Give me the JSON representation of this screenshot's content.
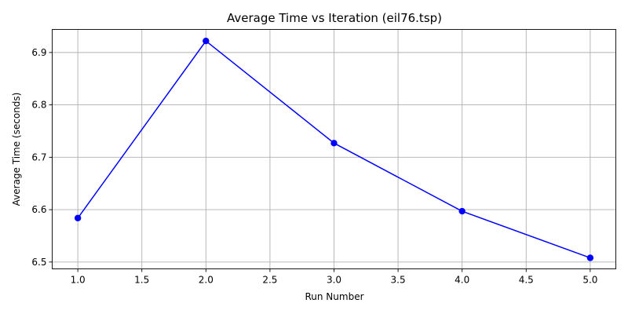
{
  "chart_data": {
    "type": "line",
    "title": "Average Time vs Iteration (eil76.tsp)",
    "xlabel": "Run Number",
    "ylabel": "Average Time (seconds)",
    "xlim": [
      0.8,
      5.2
    ],
    "ylim": [
      6.487,
      6.944
    ],
    "x_ticks": [
      1.0,
      1.5,
      2.0,
      2.5,
      3.0,
      3.5,
      4.0,
      4.5,
      5.0
    ],
    "x_tick_labels": [
      "1.0",
      "1.5",
      "2.0",
      "2.5",
      "3.0",
      "3.5",
      "4.0",
      "4.5",
      "5.0"
    ],
    "y_ticks": [
      6.5,
      6.6,
      6.7,
      6.8,
      6.9
    ],
    "y_tick_labels": [
      "6.5",
      "6.6",
      "6.7",
      "6.8",
      "6.9"
    ],
    "grid": true,
    "series": [
      {
        "x": [
          1,
          2,
          3,
          4,
          5
        ],
        "values": [
          6.584,
          6.922,
          6.727,
          6.597,
          6.508
        ],
        "color": "#0000ff",
        "marker": "circle"
      }
    ]
  }
}
